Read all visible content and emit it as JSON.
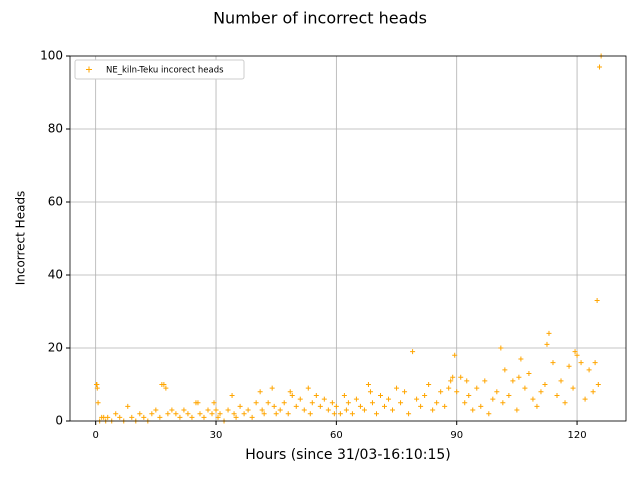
{
  "chart_data": {
    "type": "scatter",
    "title": "Number of incorrect heads",
    "xlabel": "Hours (since 31/03-16:10:15)",
    "ylabel": "Incorrect Heads",
    "xlim": [
      -6.4,
      132.2
    ],
    "ylim": [
      0,
      100
    ],
    "xticks": [
      0,
      30,
      60,
      90,
      120
    ],
    "yticks": [
      0,
      20,
      40,
      60,
      80,
      100
    ],
    "grid": true,
    "legend": "upper left",
    "series": [
      {
        "name": "NE_kiln-Teku incorect heads",
        "color": "#ffa500",
        "marker": "+",
        "x": [
          0.2,
          0.3,
          0.4,
          0.6,
          1,
          1.5,
          2,
          2.5,
          3,
          4,
          5,
          6,
          7,
          8,
          9,
          10,
          11,
          12,
          13,
          14,
          15,
          16,
          16.5,
          17,
          17.5,
          18,
          19,
          20,
          21,
          22,
          23,
          24,
          25,
          25.5,
          26,
          27,
          28,
          29,
          29.5,
          30,
          30.5,
          31,
          32,
          33,
          34,
          34.5,
          35,
          36,
          37,
          38,
          39,
          40,
          41,
          41.5,
          42,
          43,
          44,
          44.5,
          45,
          46,
          47,
          48,
          48.5,
          49,
          50,
          51,
          52,
          53,
          53.5,
          54,
          55,
          56,
          57,
          58,
          59,
          59.5,
          60,
          61,
          62,
          62.5,
          63,
          64,
          65,
          66,
          67,
          68,
          68.5,
          69,
          70,
          71,
          72,
          73,
          74,
          75,
          76,
          77,
          78,
          79,
          80,
          81,
          82,
          83,
          84,
          85,
          86,
          87,
          88,
          88.5,
          89,
          89.5,
          90,
          91,
          92,
          92.5,
          93,
          94,
          95,
          96,
          97,
          98,
          99,
          100,
          101,
          101.5,
          102,
          103,
          104,
          105,
          105.5,
          106,
          107,
          108,
          109,
          110,
          111,
          112,
          112.5,
          113,
          114,
          115,
          116,
          117,
          118,
          119,
          119.5,
          120,
          121,
          122,
          123,
          124,
          124.5,
          125,
          125.3,
          125.6,
          126
        ],
        "values": [
          10,
          10,
          9,
          5,
          0,
          1,
          1,
          0,
          1,
          0,
          2,
          1,
          0,
          4,
          1,
          0,
          2,
          1,
          0,
          2,
          3,
          1,
          10,
          10,
          9,
          2,
          3,
          2,
          1,
          3,
          2,
          1,
          5,
          5,
          2,
          1,
          3,
          2,
          5,
          3,
          1,
          2,
          0,
          3,
          7,
          2,
          1,
          4,
          2,
          3,
          1,
          5,
          8,
          3,
          2,
          5,
          9,
          4,
          2,
          3,
          5,
          2,
          8,
          7,
          4,
          6,
          3,
          9,
          2,
          5,
          7,
          4,
          6,
          3,
          5,
          2,
          4,
          2,
          7,
          3,
          5,
          2,
          6,
          4,
          3,
          10,
          8,
          5,
          2,
          7,
          4,
          6,
          3,
          9,
          5,
          8,
          2,
          19,
          6,
          4,
          7,
          10,
          3,
          5,
          8,
          4,
          9,
          11,
          12,
          18,
          8,
          12,
          5,
          11,
          7,
          3,
          9,
          4,
          11,
          2,
          6,
          8,
          20,
          5,
          14,
          7,
          11,
          3,
          12,
          17,
          9,
          13,
          6,
          4,
          8,
          10,
          21,
          24,
          16,
          7,
          11,
          5,
          15,
          9,
          19,
          18,
          16,
          6,
          14,
          8,
          16,
          33,
          10,
          97,
          100
        ]
      }
    ]
  }
}
